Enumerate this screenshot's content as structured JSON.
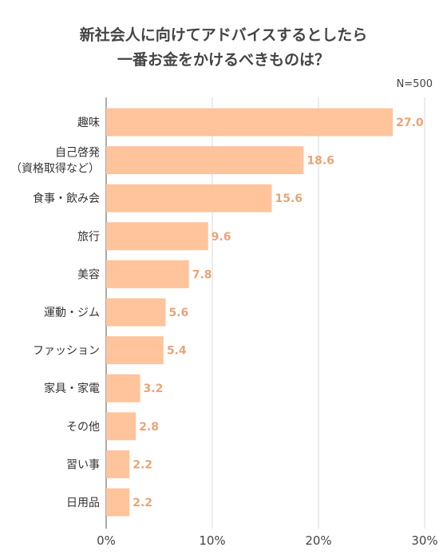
{
  "chart_data": {
    "type": "bar",
    "orientation": "horizontal",
    "title": [
      "新社会人に向けてアドバイスするとしたら",
      "一番お金をかけるべきものは？"
    ],
    "note": "N=500",
    "categories": [
      [
        "趣味"
      ],
      [
        "自己啓発",
        "（資格取得など）"
      ],
      [
        "食事・飲み会"
      ],
      [
        "旅行"
      ],
      [
        "美容"
      ],
      [
        "運動・ジム"
      ],
      [
        "ファッション"
      ],
      [
        "家具・家電"
      ],
      [
        "その他"
      ],
      [
        "習い事"
      ],
      [
        "日用品"
      ]
    ],
    "values": [
      27.0,
      18.6,
      15.6,
      9.6,
      7.8,
      5.6,
      5.4,
      3.2,
      2.8,
      2.2,
      2.2
    ],
    "value_labels": [
      "27.0",
      "18.6",
      "15.6",
      "9.6",
      "7.8",
      "5.6",
      "5.4",
      "3.2",
      "2.8",
      "2.2",
      "2.2"
    ],
    "xlim": [
      0,
      30
    ],
    "xticks": [
      0,
      10,
      20,
      30
    ],
    "xtick_labels": [
      "0%",
      "10%",
      "20%",
      "30%"
    ],
    "grid": true,
    "colors": {
      "bar": "#ffc49b",
      "value_label": "#e8a478",
      "grid": "#d9d9d9",
      "axis": "#555555"
    }
  }
}
